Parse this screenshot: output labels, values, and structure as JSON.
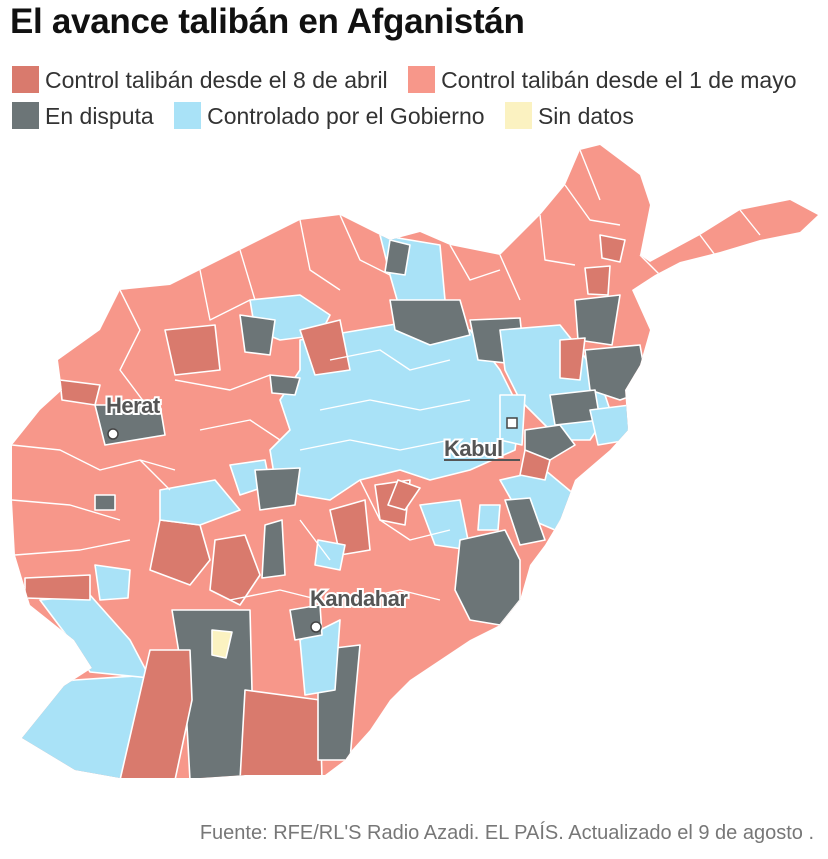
{
  "title": "El avance talibán en Afganistán",
  "legend": [
    {
      "label": "Control talibán desde el 8 de abril",
      "color": "#d97a6d"
    },
    {
      "label": "Control talibán desde el 1 de mayo",
      "color": "#f7978a"
    },
    {
      "label": "En disputa",
      "color": "#6c7577"
    },
    {
      "label": "Controlado por el Gobierno",
      "color": "#a9e2f7"
    },
    {
      "label": "Sin datos",
      "color": "#fbf2c1"
    }
  ],
  "cities": {
    "herat": "Herat",
    "kabul": "Kabul",
    "kandahar": "Kandahar"
  },
  "source": "Fuente: RFE/RL'S Radio Azadi. EL PAÍS. Actualizado el 9 de agosto ."
}
